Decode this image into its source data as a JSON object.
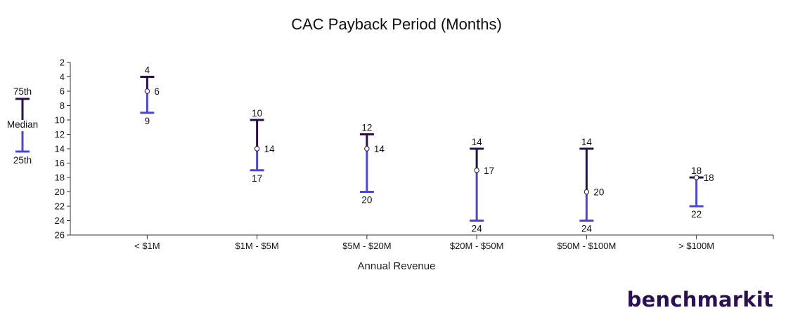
{
  "chart_data": {
    "type": "box",
    "title": "CAC Payback Period (Months)",
    "xlabel": "Annual Revenue",
    "ylabel": "",
    "categories": [
      "< $1M",
      "$1M - $5M",
      "$5M - $20M",
      "$20M - $50M",
      "$50M - $100M",
      "> $100M"
    ],
    "p75": [
      4,
      10,
      12,
      14,
      14,
      18
    ],
    "median": [
      6,
      14,
      14,
      17,
      20,
      18
    ],
    "p25": [
      9,
      17,
      20,
      24,
      24,
      22
    ],
    "ylim": [
      2,
      26
    ],
    "y_inverted": true,
    "yticks": [
      2,
      4,
      6,
      8,
      10,
      12,
      14,
      16,
      18,
      20,
      22,
      24,
      26
    ],
    "legend": {
      "top": "75th",
      "middle": "Median",
      "bottom": "25th",
      "placement": "left"
    },
    "colors": {
      "upper": "#2a0f4f",
      "lower": "#4b47cf",
      "axis": "#333333"
    }
  },
  "brand": {
    "logo_main": "benchmark",
    "logo_end": "it",
    "logo_accent": "#f2a71b"
  }
}
